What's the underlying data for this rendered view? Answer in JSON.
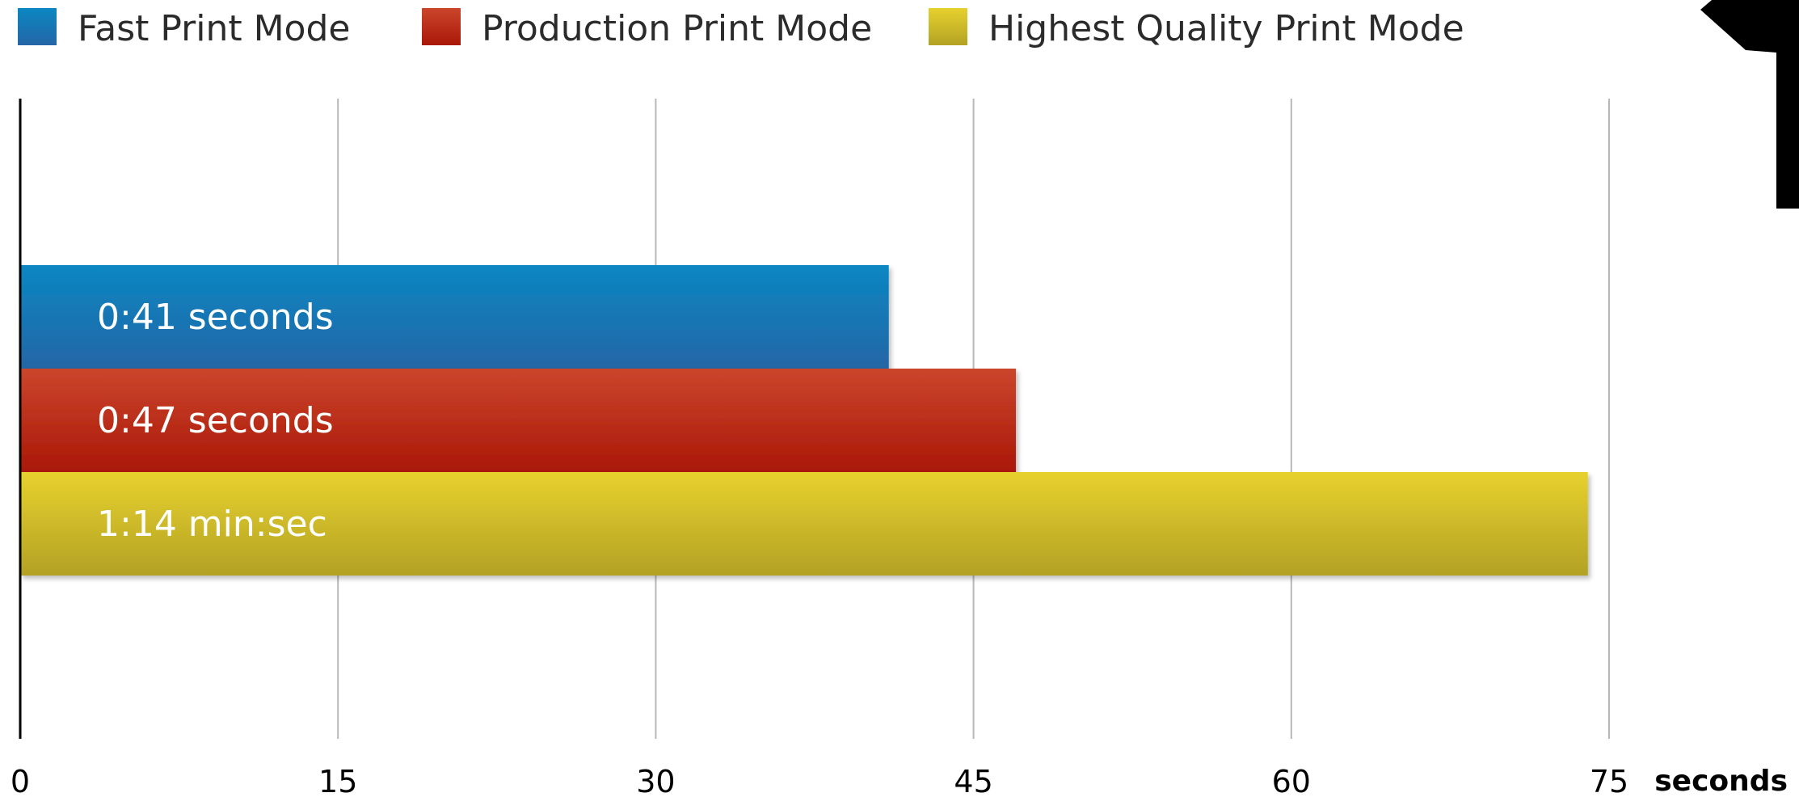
{
  "chart_data": {
    "type": "bar",
    "orientation": "horizontal",
    "series": [
      {
        "name": "Fast Print Mode",
        "value": 41,
        "label": "0:41 seconds",
        "color": "#1f74b5"
      },
      {
        "name": "Production Print Mode",
        "value": 47,
        "label": "0:47 seconds",
        "color": "#b5271a"
      },
      {
        "name": "Highest Quality Print Mode",
        "value": 74,
        "label": "1:14 min:sec",
        "color": "#c9b328"
      }
    ],
    "x_ticks": [
      "0",
      "15",
      "30",
      "45",
      "60",
      "75"
    ],
    "x_tick_values": [
      0,
      15,
      30,
      45,
      60,
      75
    ],
    "xlim": [
      0,
      75
    ],
    "xlabel": "seconds",
    "ylabel": "",
    "title": "",
    "grid": true,
    "legend_position": "top-left"
  }
}
